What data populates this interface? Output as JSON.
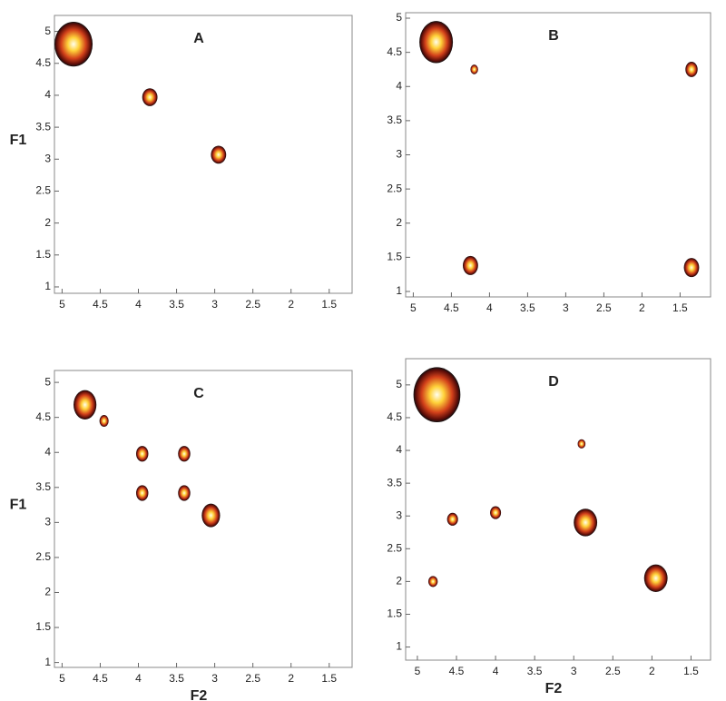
{
  "chart_data": [
    {
      "type": "scatter",
      "title": "A",
      "ylabel": "F1",
      "xlim": [
        5.1,
        1.2
      ],
      "ylim": [
        0.9,
        5.25
      ],
      "xticks": [
        5,
        4.5,
        4,
        3.5,
        3,
        2.5,
        2,
        1.5
      ],
      "yticks": [
        1,
        1.5,
        2,
        2.5,
        3,
        3.5,
        4,
        4.5,
        5
      ],
      "series": [
        {
          "x": [
            4.85,
            3.85,
            2.95
          ],
          "values": [
            4.8,
            3.97,
            3.07
          ],
          "sizes": [
            0.25,
            0.1,
            0.1
          ]
        }
      ]
    },
    {
      "type": "scatter",
      "title": "B",
      "xlim": [
        5.1,
        1.1
      ],
      "ylim": [
        0.92,
        5.08
      ],
      "xticks": [
        5,
        4.5,
        4,
        3.5,
        3,
        2.5,
        2,
        1.5
      ],
      "yticks": [
        1,
        1.5,
        2,
        2.5,
        3,
        3.5,
        4,
        4.5,
        5
      ],
      "series": [
        {
          "x": [
            4.7,
            4.2,
            1.35,
            4.25,
            1.35
          ],
          "values": [
            4.65,
            4.25,
            4.25,
            1.38,
            1.35
          ],
          "sizes": [
            0.22,
            0.05,
            0.08,
            0.1,
            0.1
          ]
        }
      ]
    },
    {
      "type": "scatter",
      "title": "C",
      "ylabel": "F1",
      "xlabel": "F2",
      "xlim": [
        5.1,
        1.2
      ],
      "ylim": [
        0.93,
        5.17
      ],
      "xticks": [
        5,
        4.5,
        4,
        3.5,
        3,
        2.5,
        2,
        1.5
      ],
      "yticks": [
        1,
        1.5,
        2,
        2.5,
        3,
        3.5,
        4,
        4.5,
        5
      ],
      "series": [
        {
          "x": [
            4.7,
            4.45,
            3.95,
            3.4,
            3.95,
            3.4,
            3.05
          ],
          "values": [
            4.68,
            4.45,
            3.98,
            3.98,
            3.42,
            3.42,
            3.1
          ],
          "sizes": [
            0.15,
            0.06,
            0.08,
            0.08,
            0.08,
            0.08,
            0.12
          ]
        }
      ]
    },
    {
      "type": "scatter",
      "title": "D",
      "xlabel": "F2",
      "xlim": [
        5.15,
        1.25
      ],
      "ylim": [
        0.8,
        5.4
      ],
      "xticks": [
        5,
        4.5,
        4,
        3.5,
        3,
        2.5,
        2,
        1.5
      ],
      "yticks": [
        1,
        1.5,
        2,
        2.5,
        3,
        3.5,
        4,
        4.5,
        5
      ],
      "series": [
        {
          "x": [
            4.75,
            2.9,
            4.0,
            2.85,
            1.95,
            4.8,
            4.55
          ],
          "values": [
            4.85,
            4.1,
            3.05,
            2.9,
            2.05,
            2.0,
            2.95
          ],
          "sizes": [
            0.3,
            0.05,
            0.07,
            0.15,
            0.15,
            0.06,
            0.07
          ]
        }
      ]
    }
  ]
}
